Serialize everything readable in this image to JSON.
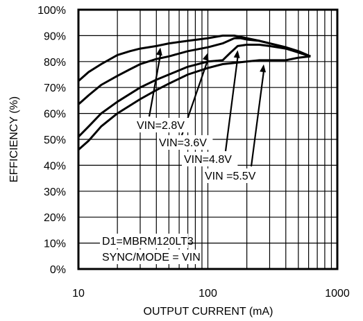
{
  "chart_data": {
    "type": "line",
    "title": "",
    "xlabel": "OUTPUT CURRENT (mA)",
    "ylabel": "EFFICIENCY (%)",
    "x_scale": "log",
    "xlim": [
      10,
      1000
    ],
    "ylim": [
      0,
      100
    ],
    "x_ticks": [
      10,
      100,
      1000
    ],
    "x_tick_labels": [
      "10",
      "100",
      "1000"
    ],
    "y_ticks": [
      0,
      10,
      20,
      30,
      40,
      50,
      60,
      70,
      80,
      90,
      100
    ],
    "y_tick_labels": [
      "0%",
      "10%",
      "20%",
      "30%",
      "40%",
      "50%",
      "60%",
      "70%",
      "80%",
      "90%",
      "100%"
    ],
    "grid": true,
    "legend": "none",
    "series": [
      {
        "name": "VIN=2.8V",
        "x": [
          10,
          12,
          15,
          20,
          25,
          30,
          40,
          50,
          70,
          100,
          130,
          160,
          200,
          250,
          300,
          400,
          500,
          620
        ],
        "y": [
          72.5,
          76,
          79,
          82.5,
          84,
          85,
          86,
          87,
          88,
          89,
          90,
          90,
          89,
          88,
          87,
          85.5,
          83.5,
          82
        ]
      },
      {
        "name": "VIN=3.6V",
        "x": [
          10,
          12,
          15,
          20,
          25,
          30,
          40,
          50,
          70,
          100,
          130,
          160,
          180,
          200,
          250,
          300,
          400,
          500,
          620
        ],
        "y": [
          63.5,
          67,
          71,
          74.5,
          77,
          79,
          81,
          82,
          84,
          85.5,
          87,
          89,
          89,
          88.5,
          88,
          87,
          85.5,
          84,
          82
        ]
      },
      {
        "name": "VIN=4.8V",
        "x": [
          10,
          12,
          15,
          20,
          30,
          40,
          50,
          70,
          100,
          130,
          150,
          170,
          200,
          250,
          300,
          400,
          500,
          620
        ],
        "y": [
          51,
          55,
          60,
          64.5,
          70,
          73,
          75,
          78,
          80,
          80.5,
          83.5,
          86,
          86.5,
          86.5,
          86,
          85,
          83.5,
          82
        ]
      },
      {
        "name": "VIN =5.5V",
        "x": [
          10,
          12,
          15,
          20,
          30,
          40,
          50,
          70,
          100,
          130,
          160,
          200,
          250,
          300,
          400,
          500,
          620
        ],
        "y": [
          46,
          49.5,
          55,
          60,
          65.5,
          69,
          71.5,
          75,
          77.5,
          79,
          79.5,
          80,
          80.5,
          80.5,
          80.5,
          81.5,
          82
        ]
      }
    ],
    "annotations": [
      {
        "text": "VIN=2.8V",
        "points_to": [
          43,
          87
        ]
      },
      {
        "text": "VIN=3.6V",
        "points_to": [
          100,
          85
        ]
      },
      {
        "text": "VIN=4.8V",
        "points_to": [
          170,
          86
        ]
      },
      {
        "text": "VIN =5.5V",
        "points_to": [
          270,
          80.5
        ]
      },
      {
        "text": "D1=MBRM120LT3"
      },
      {
        "text": "SYNC/MODE = VIN"
      }
    ]
  }
}
